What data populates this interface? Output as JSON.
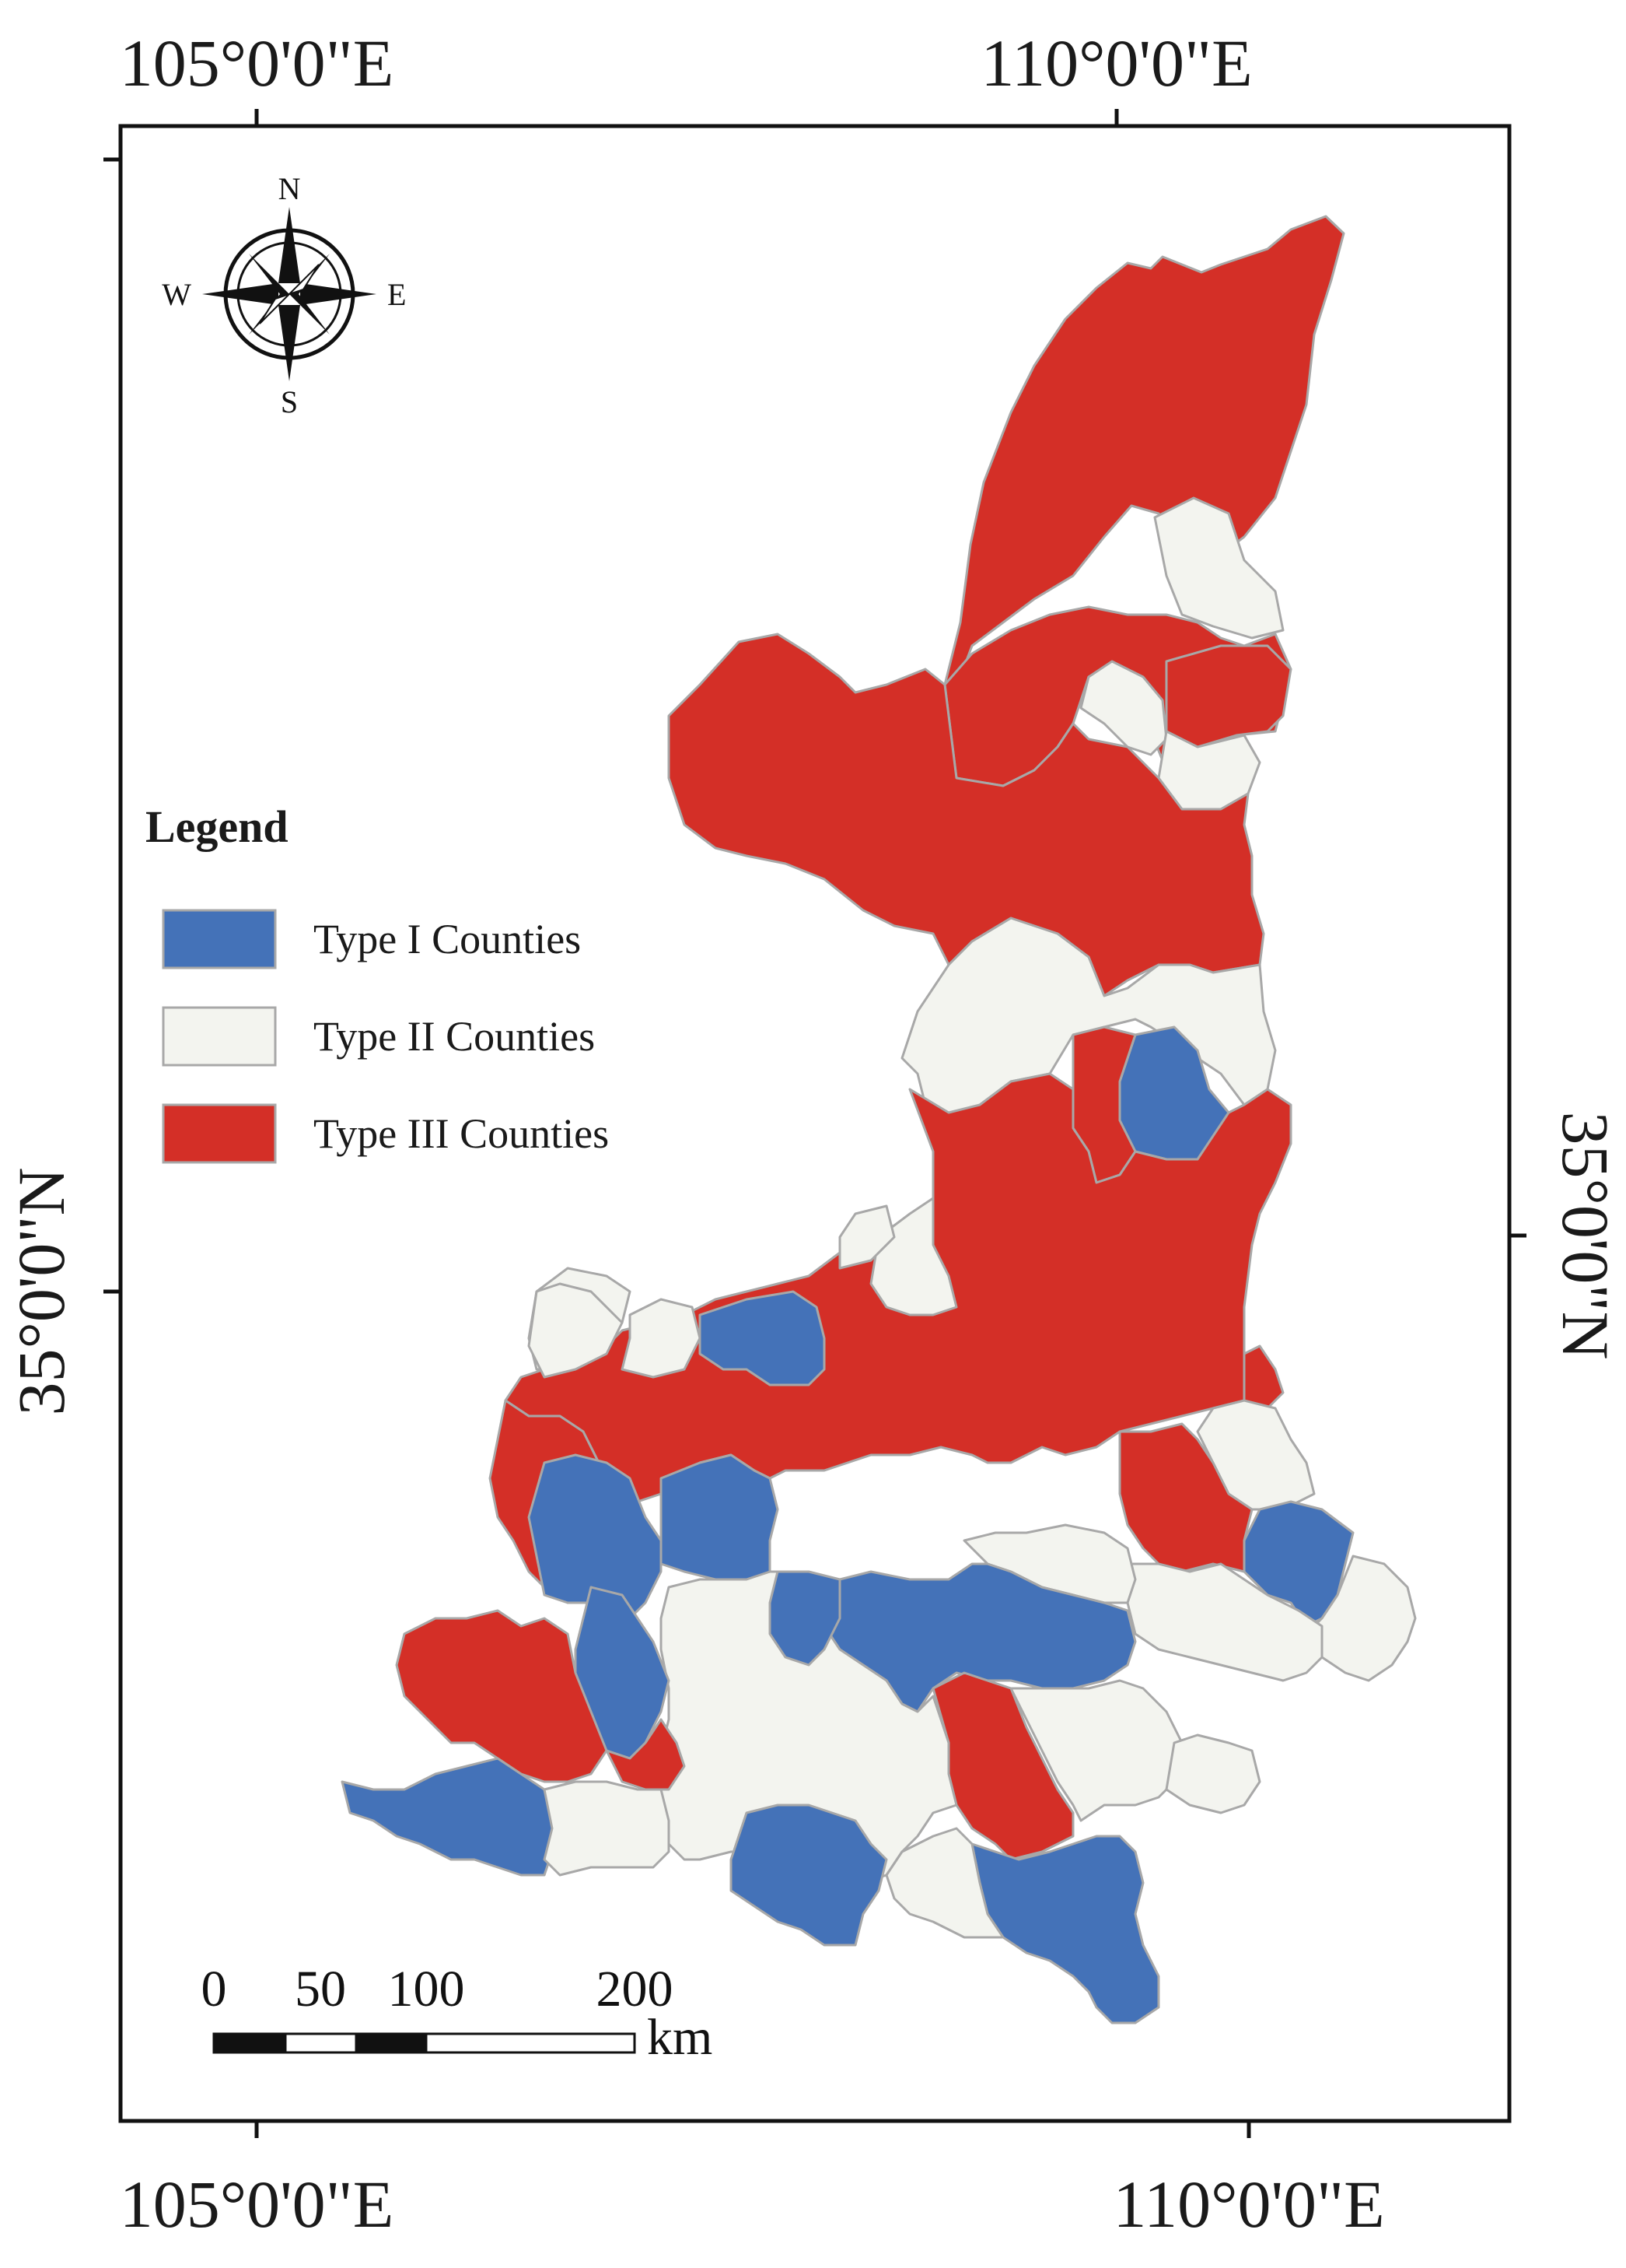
{
  "coordinates": {
    "top_left_lon": "105°0'0\"E",
    "top_right_lon": "110°0'0\"E",
    "bottom_left_lon": "105°0'0\"E",
    "bottom_right_lon": "110°0'0\"E",
    "left_lat": "35°0'0\"N",
    "right_lat": "35°0'0\"N"
  },
  "compass": {
    "n": "N",
    "s": "S",
    "e": "E",
    "w": "W"
  },
  "legend": {
    "title": "Legend",
    "items": [
      {
        "label": "Type I Counties",
        "color": "#4472b8"
      },
      {
        "label": "Type II Counties",
        "color": "#f3f4ef"
      },
      {
        "label": "Type III Counties",
        "color": "#d42f27"
      }
    ]
  },
  "scale_bar": {
    "labels": [
      "0",
      "50",
      "100",
      "200"
    ],
    "unit": "km"
  },
  "colors": {
    "type1": "#4472b8",
    "type2": "#f3f4ef",
    "type3": "#d42f27",
    "border": "#a8a8a8"
  }
}
